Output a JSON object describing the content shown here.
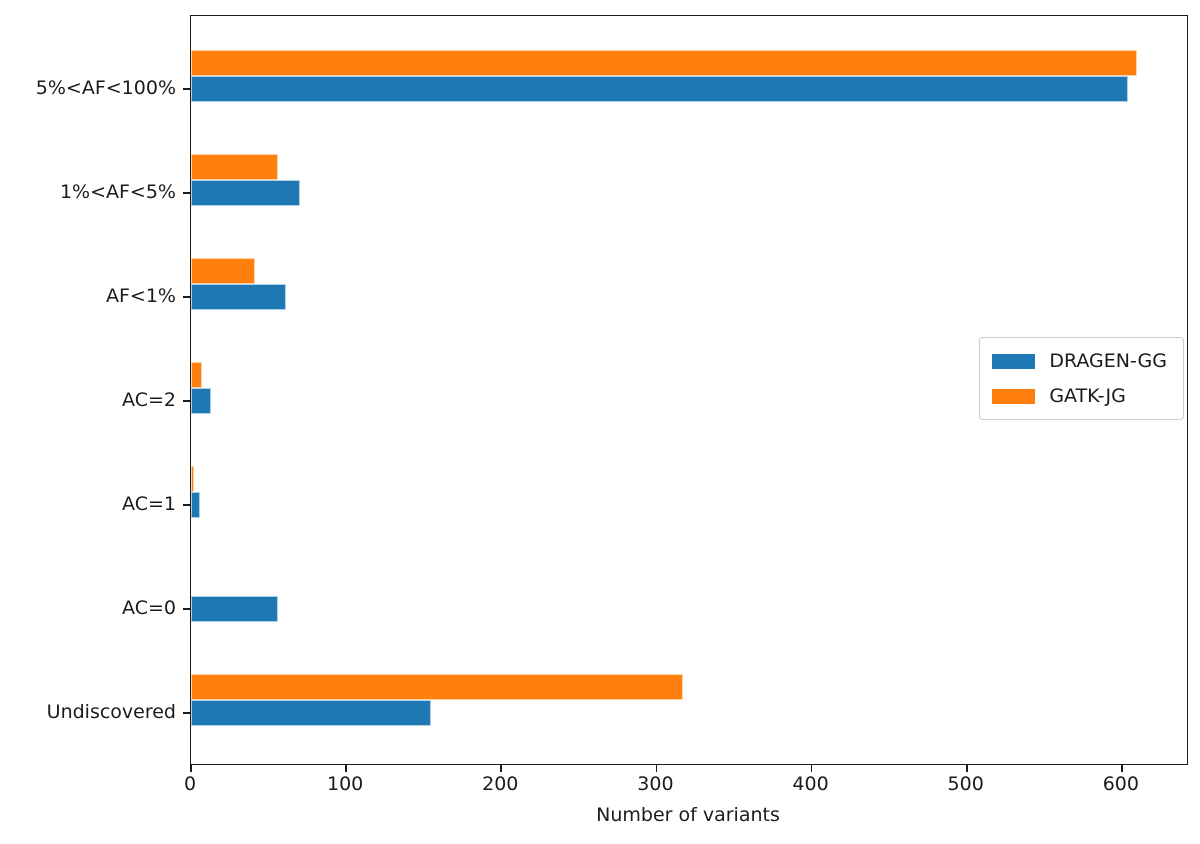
{
  "figure": {
    "background_color": "#ffffff",
    "spine_color": "#1b1b1b",
    "text_color": "#1b1b1b"
  },
  "chart_data": {
    "type": "bar",
    "orientation": "horizontal",
    "title": "",
    "xlabel": "Number of variants",
    "ylabel": "",
    "categories": [
      "5%<AF<100%",
      "1%<AF<5%",
      "AF<1%",
      "AC=2",
      "AC=1",
      "AC=0",
      "Undiscovered"
    ],
    "series": [
      {
        "name": "DRAGEN-GG",
        "color": "#1f77b4",
        "edge_color": "#aed0e8",
        "values": [
          604,
          70,
          61,
          13,
          6,
          56,
          155
        ]
      },
      {
        "name": "GATK-JG",
        "color": "#ff7f0e",
        "edge_color": "#ffd6a9",
        "values": [
          610,
          56,
          41,
          7,
          2,
          0,
          317
        ]
      }
    ],
    "xlim": [
      0,
      642
    ],
    "xticks": [
      0,
      100,
      200,
      300,
      400,
      500,
      600
    ],
    "grid": false,
    "legend_position": "center right"
  }
}
